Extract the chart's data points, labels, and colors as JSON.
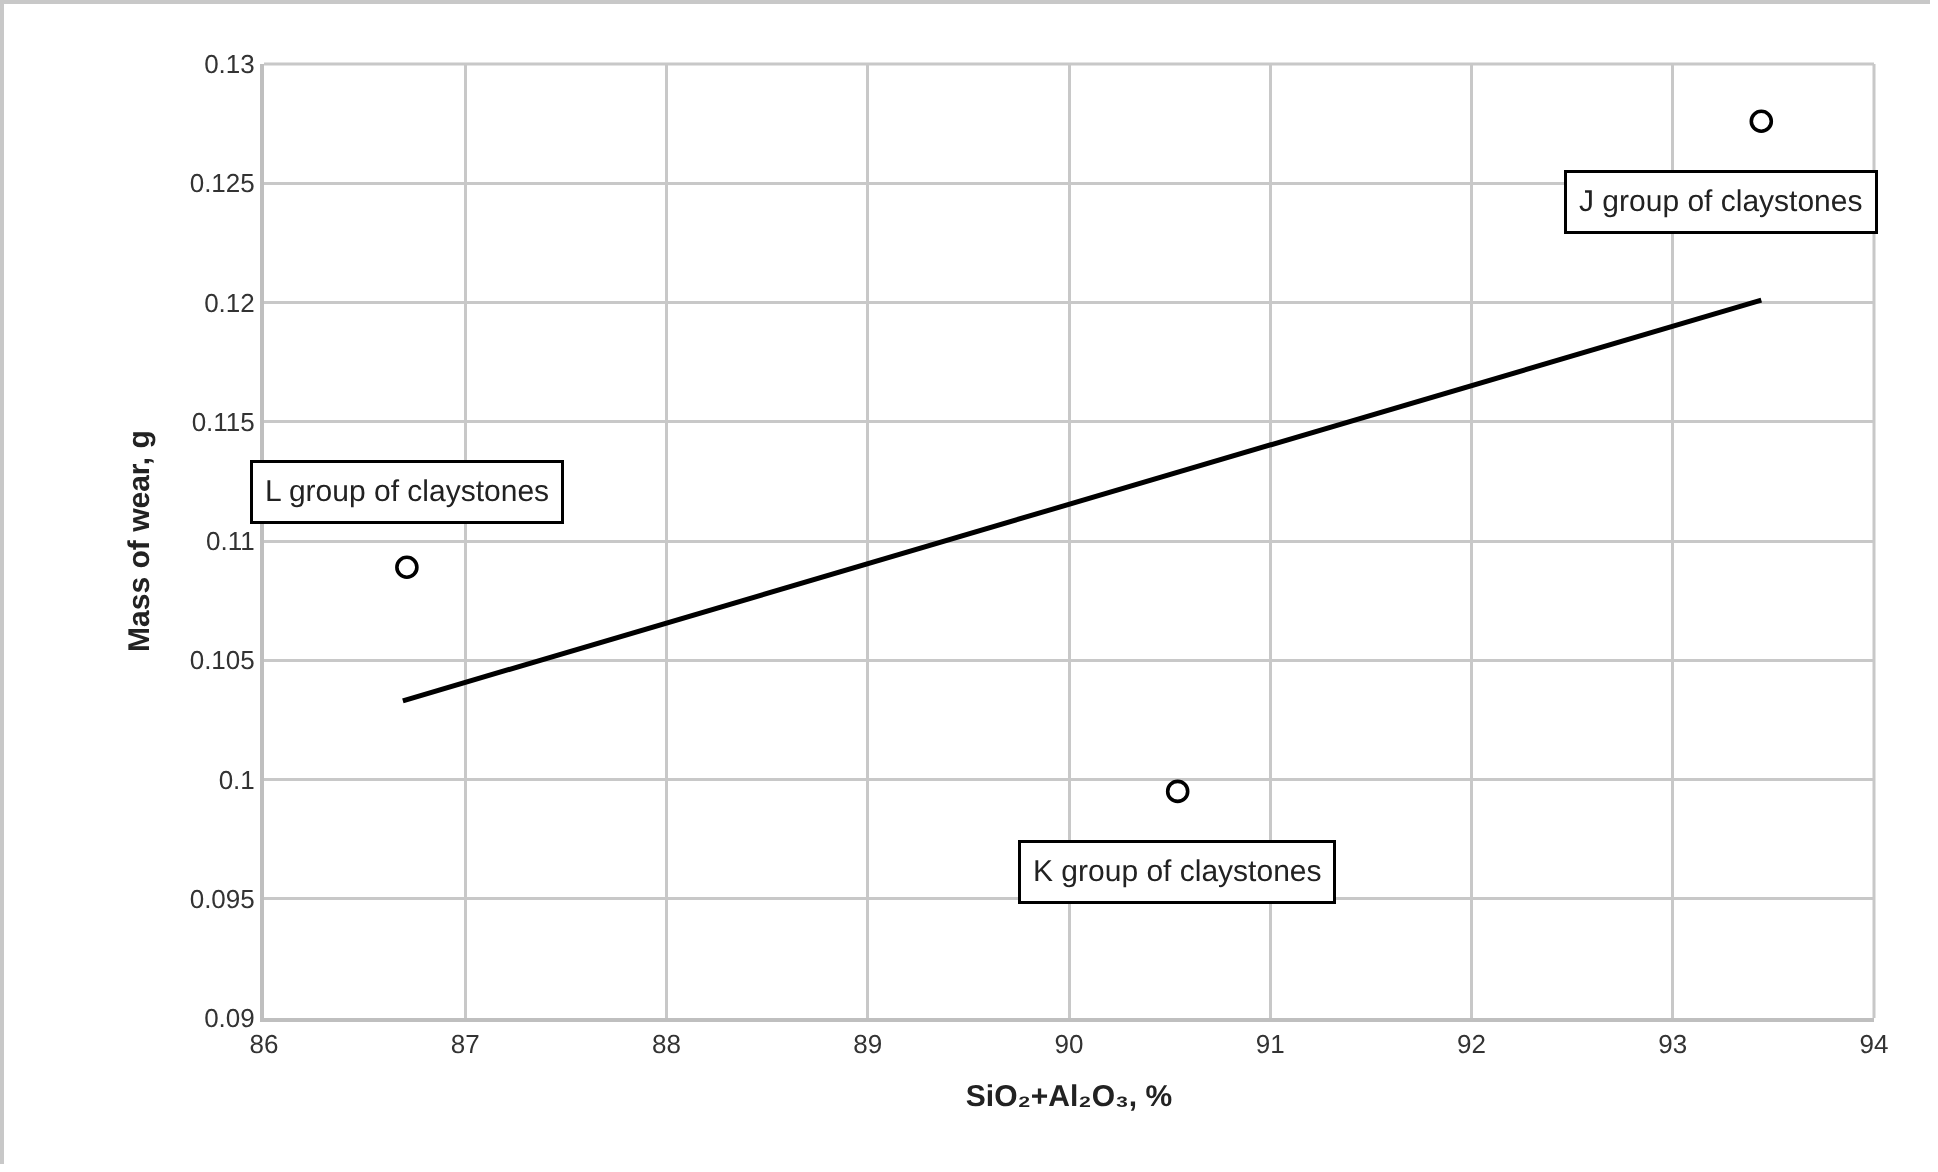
{
  "chart_data": {
    "type": "scatter",
    "xlabel": "SiO₂+Al₂O₃, %",
    "ylabel": "Mass of wear, g",
    "series": [
      {
        "type": "scatter",
        "color": "#000000",
        "marker": "circle",
        "x": [
          86.71,
          90.54,
          93.44
        ],
        "values": [
          0.1089,
          0.0995,
          0.1276
        ]
      },
      {
        "type": "line",
        "color": "#000000",
        "marker": "none",
        "line_style": "solid",
        "x": [
          86.69,
          93.44
        ],
        "values": [
          0.1033,
          0.1201
        ]
      }
    ],
    "annotations": [
      {
        "text": "L group of claystones",
        "x": 86.71,
        "y": 0.1089
      },
      {
        "text": "K group of claystones",
        "x": 90.54,
        "y": 0.0995
      },
      {
        "text": "J group of claystones",
        "x": 93.44,
        "y": 0.1276
      }
    ],
    "xlim": [
      86,
      94
    ],
    "xticks": [
      86,
      87,
      88,
      89,
      90,
      91,
      92,
      93,
      94
    ],
    "ylim": [
      0.09,
      0.13
    ],
    "yticks": [
      0.09,
      0.095,
      0.1,
      0.105,
      0.11,
      0.115,
      0.12,
      0.125,
      0.13
    ],
    "grid": true
  }
}
